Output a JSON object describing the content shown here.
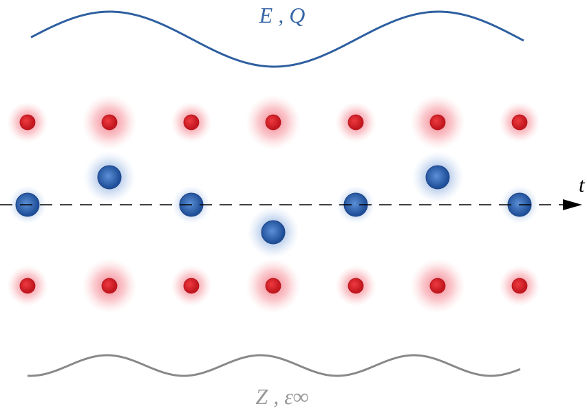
{
  "labels": {
    "top": "E , Q",
    "axis": "t",
    "bottom": "Z , ε∞"
  }
}
